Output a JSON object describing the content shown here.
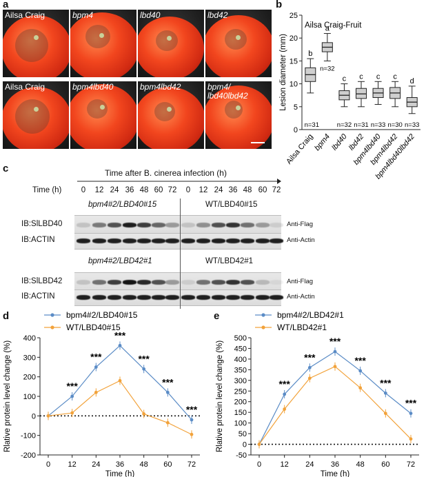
{
  "panel_a": {
    "letter": "a",
    "top_row": [
      "Ailsa Craig",
      "bpm4",
      "lbd40",
      "lbd42"
    ],
    "bottom_row": [
      "Ailsa Craig",
      "bpm4lbd40",
      "bpm4lbd42",
      "bpm4/ lbd40lbd42"
    ]
  },
  "panel_b": {
    "letter": "b",
    "chart_data": {
      "type": "box",
      "title": "Ailsa Craig-Fruit",
      "ylabel": "Lesion diameter (mm)",
      "ylim": [
        0,
        25
      ],
      "yticks": [
        0,
        5,
        10,
        15,
        20,
        25
      ],
      "categories": [
        "Ailsa Craig",
        "bpm4",
        "lbd40",
        "lbd42",
        "bpm4lbd40",
        "bpm4lbd42",
        "bpm4lbd40lbd42"
      ],
      "letters": [
        "b",
        "a",
        "c",
        "c",
        "c",
        "c",
        "d"
      ],
      "n_labels": [
        "n=31",
        "n=32",
        "n=32",
        "n=31",
        "n=33",
        "n=30",
        "n=33"
      ],
      "boxes": [
        {
          "min": 8,
          "q1": 10.5,
          "median": 12,
          "q3": 13.5,
          "max": 15.5
        },
        {
          "min": 15,
          "q1": 17,
          "median": 18,
          "q3": 19,
          "max": 21
        },
        {
          "min": 5,
          "q1": 6.5,
          "median": 7.5,
          "q3": 8.5,
          "max": 10
        },
        {
          "min": 5,
          "q1": 6.8,
          "median": 7.8,
          "q3": 9,
          "max": 10.5
        },
        {
          "min": 5.5,
          "q1": 7,
          "median": 8,
          "q3": 9,
          "max": 10.5
        },
        {
          "min": 5,
          "q1": 6.8,
          "median": 8,
          "q3": 9.2,
          "max": 10.5
        },
        {
          "min": 3.5,
          "q1": 5,
          "median": 6,
          "q3": 7,
          "max": 9.5
        }
      ]
    }
  },
  "panel_c": {
    "letter": "c",
    "header": "Time after B. cinerea infection (h)",
    "time_label": "Time (h)",
    "timepoints": [
      "0",
      "12",
      "24",
      "36",
      "48",
      "60",
      "72",
      "0",
      "12",
      "24",
      "36",
      "48",
      "60",
      "72"
    ],
    "group1_left": "bpm4#2/LBD40#15",
    "group1_right": "WT/LBD40#15",
    "group2_left": "bpm4#2/LBD42#1",
    "group2_right": "WT/LBD42#1",
    "rows": [
      {
        "label": "IB:SlLBD40",
        "antibody": "Anti-Flag"
      },
      {
        "label": "IB:ACTIN",
        "antibody": "Anti-Actin"
      },
      {
        "label": "IB:SlLBD42",
        "antibody": "Anti-Flag"
      },
      {
        "label": "IB:ACTIN",
        "antibody": "Anti-Actin"
      }
    ],
    "band_intensity": {
      "lbd40": [
        0.15,
        0.5,
        0.7,
        0.95,
        0.8,
        0.6,
        0.35,
        0.15,
        0.4,
        0.7,
        0.85,
        0.55,
        0.35,
        0.1
      ],
      "lbd42": [
        0.15,
        0.55,
        0.8,
        1.0,
        0.9,
        0.7,
        0.35,
        0.1,
        0.55,
        0.7,
        0.85,
        0.7,
        0.2,
        0.05
      ]
    }
  },
  "panel_d": {
    "letter": "d",
    "chart_data": {
      "type": "line",
      "ylabel": "Rlative protein level change (%)",
      "xlabel": "Time (h)",
      "x": [
        0,
        12,
        24,
        36,
        48,
        60,
        72
      ],
      "ylim": [
        -200,
        400
      ],
      "yticks": [
        -200,
        -100,
        0,
        100,
        200,
        300,
        400
      ],
      "series": [
        {
          "name": "bpm4#2/LBD40#15",
          "color": "#5b8cc6",
          "values": [
            0,
            100,
            250,
            360,
            240,
            120,
            -20
          ]
        },
        {
          "name": "WT/LBD40#15",
          "color": "#f2a23a",
          "values": [
            0,
            15,
            120,
            180,
            10,
            -35,
            -95
          ]
        }
      ],
      "significance": [
        "***",
        "***",
        "***",
        "***",
        "***",
        "***"
      ]
    }
  },
  "panel_e": {
    "letter": "e",
    "chart_data": {
      "type": "line",
      "ylabel": "Rlative protein level change (%)",
      "xlabel": "Time (h)",
      "x": [
        0,
        12,
        24,
        36,
        48,
        60,
        72
      ],
      "ylim": [
        -50,
        500
      ],
      "yticks": [
        -50,
        0,
        50,
        100,
        150,
        200,
        250,
        300,
        350,
        400,
        450,
        500
      ],
      "series": [
        {
          "name": "bpm4#2/LBD42#1",
          "color": "#5b8cc6",
          "values": [
            0,
            235,
            360,
            435,
            345,
            240,
            145
          ]
        },
        {
          "name": "WT/LBD42#1",
          "color": "#f2a23a",
          "values": [
            0,
            165,
            310,
            365,
            265,
            145,
            25
          ]
        }
      ],
      "significance": [
        "***",
        "***",
        "***",
        "***",
        "***",
        "***"
      ]
    }
  }
}
